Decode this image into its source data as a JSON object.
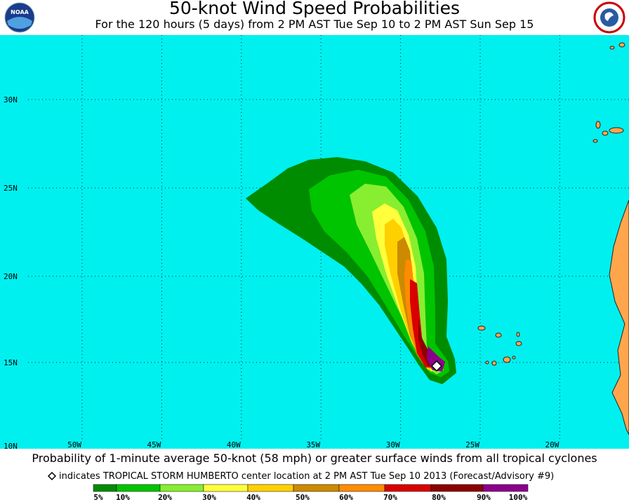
{
  "header": {
    "title": "50-knot Wind Speed Probabilities",
    "subtitle": "For the 120 hours (5 days) from 2 PM AST Tue Sep 10 to 2 PM AST Sun Sep 15",
    "logo_text": "NOAA"
  },
  "map": {
    "lat_labels": [
      "30N",
      "25N",
      "20N",
      "15N",
      "10N"
    ],
    "lon_labels": [
      "50W",
      "45W",
      "40W",
      "35W",
      "30W",
      "25W",
      "20W"
    ]
  },
  "footer": {
    "caption": "Probability of 1-minute average 50-knot (58 mph) or greater surface winds from all tropical cyclones",
    "note": "indicates TROPICAL STORM HUMBERTO center location at 2 PM AST Tue Sep 10 2013 (Forecast/Advisory #9)"
  },
  "legend": {
    "labels": [
      "5%",
      "10%",
      "20%",
      "30%",
      "40%",
      "50%",
      "60%",
      "70%",
      "80%",
      "90%",
      "100%"
    ],
    "colors": [
      "#008c00",
      "#00c400",
      "#88ee30",
      "#ffff3c",
      "#ffd000",
      "#cc8a00",
      "#ff8c00",
      "#d80000",
      "#8c0000",
      "#8c008c"
    ]
  }
}
